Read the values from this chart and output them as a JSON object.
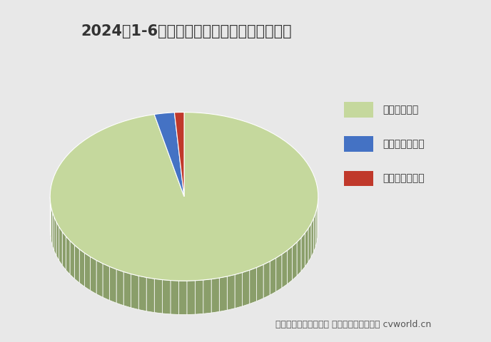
{
  "title": "2024年1-6月新能源自卸车燃料类型占比一览",
  "slices": [
    {
      "label": "纯电动自卸车",
      "value": 5763,
      "pct": 96.42,
      "color": "#c5d89d",
      "shadow_color": "#8a9e6a"
    },
    {
      "label": "燃料电池自卸车",
      "value": 145,
      "pct": 2.43,
      "color": "#4472c4",
      "shadow_color": "#2a4a8a"
    },
    {
      "label": "混合动力自卸车",
      "value": 69,
      "pct": 1.15,
      "color": "#c0392b",
      "shadow_color": "#8a1a12"
    }
  ],
  "legend_labels": [
    "纯电动自卸车",
    "燃料电池自卸车",
    "混合动力自卸车"
  ],
  "legend_colors": [
    "#c5d89d",
    "#4472c4",
    "#c0392b"
  ],
  "source_text": "数据来源：交强险统计 制图：第一商用车网 cvworld.cn",
  "bg_color": "#e8e8e8",
  "title_fontsize": 15,
  "annotation_fontsize": 10,
  "source_fontsize": 9
}
